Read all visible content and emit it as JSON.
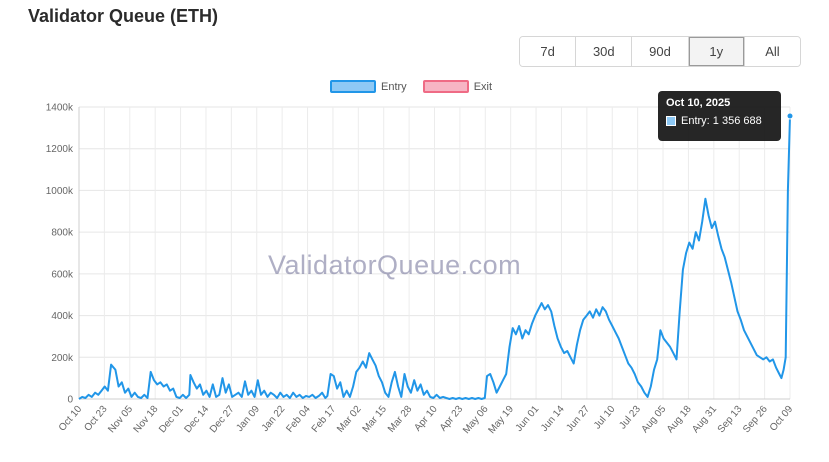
{
  "title": "Validator Queue (ETH)",
  "ranges": [
    {
      "label": "7d",
      "active": false
    },
    {
      "label": "30d",
      "active": false
    },
    {
      "label": "90d",
      "active": false
    },
    {
      "label": "1y",
      "active": true
    },
    {
      "label": "All",
      "active": false
    }
  ],
  "watermark": "ValidatorQueue.com",
  "tooltip": {
    "date": "Oct 10, 2025",
    "line": "Entry: 1 356 688"
  },
  "colors": {
    "entry": "#2196e8",
    "entry_fill": "#8ec9f5",
    "exit": "#ef6b85",
    "exit_fill": "#f7b5c4"
  },
  "chart_data": {
    "type": "line",
    "ylim": [
      0,
      1400000
    ],
    "yticks": [
      "0",
      "200k",
      "400k",
      "600k",
      "800k",
      "1000k",
      "1200k",
      "1400k"
    ],
    "xticks": [
      "Oct 10",
      "Oct 23",
      "Nov 05",
      "Nov 18",
      "Dec 01",
      "Dec 14",
      "Dec 27",
      "Jan 09",
      "Jan 22",
      "Feb 04",
      "Feb 17",
      "Mar 02",
      "Mar 15",
      "Mar 28",
      "Apr 10",
      "Apr 23",
      "May 06",
      "May 19",
      "Jun 01",
      "Jun 14",
      "Jun 27",
      "Jul 10",
      "Jul 23",
      "Aug 05",
      "Aug 18",
      "Aug 31",
      "Sep 13",
      "Sep 26",
      "Oct 09"
    ],
    "grid": true,
    "legend_position": "top-center",
    "series": [
      {
        "name": "Entry",
        "points": [
          [
            0,
            0
          ],
          [
            1.5,
            10000
          ],
          [
            3,
            5000
          ],
          [
            4.5,
            20000
          ],
          [
            6,
            10000
          ],
          [
            7.5,
            30000
          ],
          [
            9,
            20000
          ],
          [
            10.5,
            40000
          ],
          [
            12,
            60000
          ],
          [
            13.5,
            40000
          ],
          [
            15,
            165000
          ],
          [
            17,
            140000
          ],
          [
            18.5,
            60000
          ],
          [
            20,
            80000
          ],
          [
            21.5,
            30000
          ],
          [
            23,
            50000
          ],
          [
            24.5,
            10000
          ],
          [
            26,
            30000
          ],
          [
            27.5,
            10000
          ],
          [
            29,
            5000
          ],
          [
            30.5,
            20000
          ],
          [
            32,
            5000
          ],
          [
            33.5,
            130000
          ],
          [
            35,
            90000
          ],
          [
            36.5,
            70000
          ],
          [
            38,
            80000
          ],
          [
            39.5,
            60000
          ],
          [
            41,
            70000
          ],
          [
            42.5,
            40000
          ],
          [
            44,
            50000
          ],
          [
            45.5,
            10000
          ],
          [
            47,
            5000
          ],
          [
            48.5,
            20000
          ],
          [
            50,
            5000
          ],
          [
            51.5,
            20000
          ],
          [
            52,
            115000
          ],
          [
            53.5,
            80000
          ],
          [
            55,
            50000
          ],
          [
            56.5,
            70000
          ],
          [
            58,
            20000
          ],
          [
            59.5,
            40000
          ],
          [
            61,
            10000
          ],
          [
            62.5,
            70000
          ],
          [
            64,
            10000
          ],
          [
            65.5,
            20000
          ],
          [
            67,
            100000
          ],
          [
            68.5,
            30000
          ],
          [
            70,
            70000
          ],
          [
            71.5,
            10000
          ],
          [
            73,
            20000
          ],
          [
            74.5,
            30000
          ],
          [
            76,
            10000
          ],
          [
            77.5,
            85000
          ],
          [
            79,
            20000
          ],
          [
            80.5,
            40000
          ],
          [
            82,
            10000
          ],
          [
            83.5,
            90000
          ],
          [
            85,
            20000
          ],
          [
            86.5,
            40000
          ],
          [
            88,
            10000
          ],
          [
            89.5,
            30000
          ],
          [
            91,
            20000
          ],
          [
            92.5,
            5000
          ],
          [
            94,
            30000
          ],
          [
            95.5,
            10000
          ],
          [
            97,
            20000
          ],
          [
            98.5,
            5000
          ],
          [
            100,
            30000
          ],
          [
            101.5,
            10000
          ],
          [
            103,
            20000
          ],
          [
            104.5,
            5000
          ],
          [
            106,
            15000
          ],
          [
            107.5,
            10000
          ],
          [
            109,
            20000
          ],
          [
            110.5,
            5000
          ],
          [
            112,
            15000
          ],
          [
            113.5,
            30000
          ],
          [
            115,
            5000
          ],
          [
            116,
            15000
          ],
          [
            117.5,
            120000
          ],
          [
            119,
            110000
          ],
          [
            120.5,
            50000
          ],
          [
            122,
            80000
          ],
          [
            123.5,
            10000
          ],
          [
            125,
            40000
          ],
          [
            126.5,
            10000
          ],
          [
            128,
            60000
          ],
          [
            129.5,
            130000
          ],
          [
            131,
            150000
          ],
          [
            132.5,
            180000
          ],
          [
            134,
            150000
          ],
          [
            135.5,
            220000
          ],
          [
            137,
            190000
          ],
          [
            138.5,
            160000
          ],
          [
            140,
            110000
          ],
          [
            141.5,
            80000
          ],
          [
            143,
            30000
          ],
          [
            144.5,
            10000
          ],
          [
            146,
            80000
          ],
          [
            147.5,
            130000
          ],
          [
            149,
            60000
          ],
          [
            150.5,
            10000
          ],
          [
            152,
            120000
          ],
          [
            153.5,
            60000
          ],
          [
            155,
            30000
          ],
          [
            156.5,
            90000
          ],
          [
            158,
            40000
          ],
          [
            159.5,
            70000
          ],
          [
            161,
            20000
          ],
          [
            162.5,
            40000
          ],
          [
            164,
            10000
          ],
          [
            165.5,
            5000
          ],
          [
            167,
            20000
          ],
          [
            168.5,
            5000
          ],
          [
            170,
            10000
          ],
          [
            171.5,
            5000
          ],
          [
            173,
            0
          ],
          [
            174.5,
            5000
          ],
          [
            176,
            0
          ],
          [
            177.5,
            5000
          ],
          [
            179,
            0
          ],
          [
            180.5,
            5000
          ],
          [
            182,
            0
          ],
          [
            183.5,
            5000
          ],
          [
            185,
            0
          ],
          [
            186.5,
            5000
          ],
          [
            188,
            0
          ],
          [
            189.5,
            5000
          ],
          [
            190.5,
            110000
          ],
          [
            192,
            120000
          ],
          [
            193.5,
            80000
          ],
          [
            195,
            30000
          ],
          [
            196.5,
            60000
          ],
          [
            198,
            90000
          ],
          [
            199.5,
            120000
          ],
          [
            201,
            250000
          ],
          [
            202.5,
            340000
          ],
          [
            204,
            310000
          ],
          [
            205.5,
            350000
          ],
          [
            207,
            290000
          ],
          [
            208.5,
            330000
          ],
          [
            210,
            310000
          ],
          [
            211.5,
            360000
          ],
          [
            213,
            400000
          ],
          [
            214.5,
            430000
          ],
          [
            216,
            460000
          ],
          [
            217.5,
            430000
          ],
          [
            219,
            450000
          ],
          [
            220.5,
            420000
          ],
          [
            222,
            350000
          ],
          [
            223.5,
            290000
          ],
          [
            225,
            250000
          ],
          [
            226.5,
            220000
          ],
          [
            228,
            230000
          ],
          [
            229.5,
            200000
          ],
          [
            231,
            170000
          ],
          [
            232.5,
            260000
          ],
          [
            234,
            330000
          ],
          [
            235.5,
            380000
          ],
          [
            237,
            400000
          ],
          [
            238.5,
            420000
          ],
          [
            240,
            390000
          ],
          [
            241.5,
            430000
          ],
          [
            243,
            400000
          ],
          [
            244.5,
            440000
          ],
          [
            246,
            420000
          ],
          [
            247.5,
            380000
          ],
          [
            249,
            350000
          ],
          [
            250.5,
            320000
          ],
          [
            252,
            290000
          ],
          [
            253.5,
            250000
          ],
          [
            255,
            210000
          ],
          [
            256.5,
            170000
          ],
          [
            258,
            150000
          ],
          [
            259.5,
            120000
          ],
          [
            261,
            80000
          ],
          [
            262.5,
            60000
          ],
          [
            264,
            30000
          ],
          [
            265.5,
            10000
          ],
          [
            267,
            60000
          ],
          [
            268.5,
            140000
          ],
          [
            270,
            190000
          ],
          [
            271.5,
            330000
          ],
          [
            273,
            290000
          ],
          [
            274.5,
            270000
          ],
          [
            276,
            250000
          ],
          [
            277.5,
            220000
          ],
          [
            279,
            190000
          ],
          [
            280.5,
            420000
          ],
          [
            282,
            620000
          ],
          [
            283.5,
            700000
          ],
          [
            285,
            750000
          ],
          [
            286.5,
            720000
          ],
          [
            288,
            800000
          ],
          [
            289.5,
            760000
          ],
          [
            291,
            850000
          ],
          [
            292.5,
            960000
          ],
          [
            294,
            880000
          ],
          [
            295.5,
            820000
          ],
          [
            297,
            850000
          ],
          [
            298.5,
            780000
          ],
          [
            300,
            720000
          ],
          [
            301.5,
            680000
          ],
          [
            303,
            620000
          ],
          [
            304.5,
            560000
          ],
          [
            306,
            490000
          ],
          [
            307.5,
            420000
          ],
          [
            309,
            380000
          ],
          [
            310.5,
            330000
          ],
          [
            312,
            300000
          ],
          [
            313.5,
            270000
          ],
          [
            315,
            240000
          ],
          [
            316.5,
            210000
          ],
          [
            318,
            200000
          ],
          [
            319.5,
            190000
          ],
          [
            321,
            200000
          ],
          [
            322.5,
            180000
          ],
          [
            324,
            190000
          ],
          [
            325.5,
            150000
          ],
          [
            327,
            120000
          ],
          [
            328,
            100000
          ],
          [
            329,
            140000
          ],
          [
            330,
            200000
          ],
          [
            331,
            1000000
          ],
          [
            332,
            1356688
          ]
        ]
      }
    ],
    "series_names": [
      "Entry",
      "Exit"
    ],
    "x_span": 332
  }
}
